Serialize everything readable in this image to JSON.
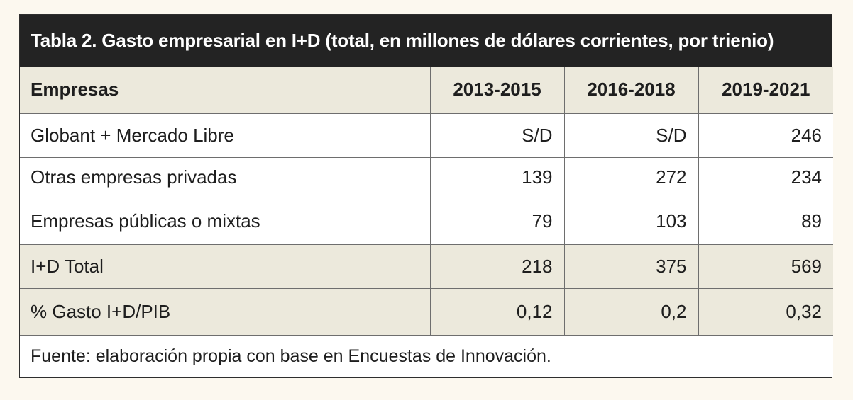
{
  "title": "Tabla 2. Gasto empresarial en I+D (total, en millones de dólares corrientes, por trienio)",
  "header": {
    "first": "Empresas",
    "periods": [
      "2013-2015",
      "2016-2018",
      "2019-2021"
    ]
  },
  "rows": [
    {
      "label": "Globant + Mercado Libre",
      "values": [
        "S/D",
        "S/D",
        "246"
      ]
    },
    {
      "label": "Otras empresas privadas",
      "values": [
        "139",
        "272",
        "234"
      ]
    },
    {
      "label": "Empresas públicas o mixtas",
      "values": [
        "79",
        "103",
        "89"
      ]
    },
    {
      "label": "I+D Total",
      "values": [
        "218",
        "375",
        "569"
      ]
    },
    {
      "label": "% Gasto I+D/PIB",
      "values": [
        "0,12",
        "0,2",
        "0,32"
      ]
    }
  ],
  "source": "Fuente: elaboración propia con base en Encuestas de Innovación.",
  "colors": {
    "title_bg": "#232323",
    "shade": "#ece9dc",
    "page_bg": "#fcf8ef"
  }
}
